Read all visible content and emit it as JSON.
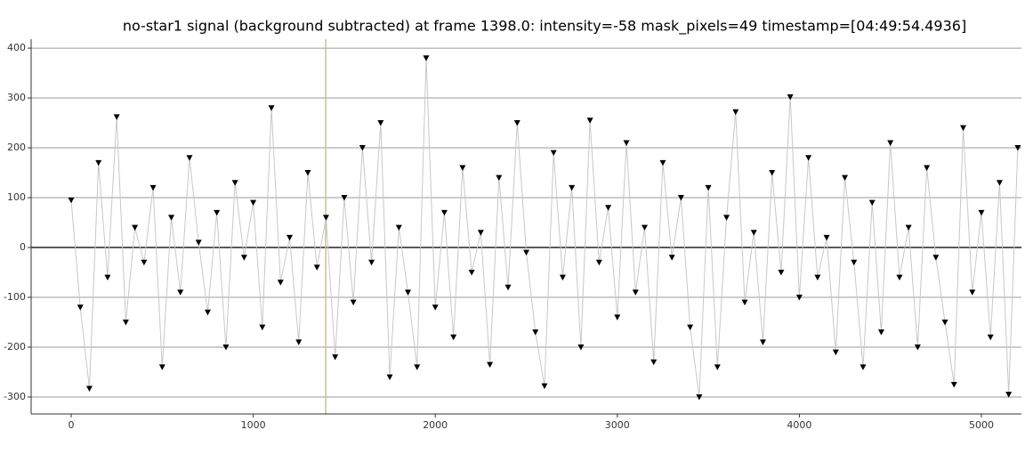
{
  "chart_data": {
    "type": "line",
    "title": "no-star1 signal (background subtracted) at frame 1398.0: intensity=-58 mask_pixels=49 timestamp=[04:49:54.4936]",
    "x": [
      0,
      50,
      100,
      150,
      200,
      250,
      300,
      350,
      400,
      450,
      500,
      550,
      600,
      650,
      700,
      750,
      800,
      850,
      900,
      950,
      1000,
      1050,
      1100,
      1150,
      1200,
      1250,
      1300,
      1350,
      1400,
      1450,
      1500,
      1550,
      1600,
      1650,
      1700,
      1750,
      1800,
      1850,
      1900,
      1950,
      2000,
      2050,
      2100,
      2150,
      2200,
      2250,
      2300,
      2350,
      2400,
      2450,
      2500,
      2550,
      2600,
      2650,
      2700,
      2750,
      2800,
      2850,
      2900,
      2950,
      3000,
      3050,
      3100,
      3150,
      3200,
      3250,
      3300,
      3350,
      3400,
      3450,
      3500,
      3550,
      3600,
      3650,
      3700,
      3750,
      3800,
      3850,
      3900,
      3950,
      4000,
      4050,
      4100,
      4150,
      4200,
      4250,
      4300,
      4350,
      4400,
      4450,
      4500,
      4550,
      4600,
      4650,
      4700,
      4750,
      4800,
      4850,
      4900,
      4950,
      5000,
      5050,
      5100,
      5150,
      5200
    ],
    "series": [
      {
        "color": "#000000",
        "line_color": "#c8c8c8",
        "values": [
          95,
          -120,
          -283,
          170,
          -60,
          262,
          -150,
          40,
          -30,
          120,
          -240,
          60,
          -90,
          180,
          10,
          -130,
          70,
          -200,
          130,
          -20,
          90,
          -160,
          280,
          -70,
          20,
          -190,
          150,
          -40,
          60,
          -220,
          100,
          -110,
          200,
          -30,
          250,
          -260,
          40,
          -90,
          -240,
          380,
          -120,
          70,
          -180,
          160,
          -50,
          30,
          -235,
          140,
          -80,
          250,
          -10,
          -170,
          -278,
          190,
          -60,
          120,
          -200,
          255,
          -30,
          80,
          -140,
          210,
          -90,
          40,
          -230,
          170,
          -20,
          100,
          -160,
          -300,
          120,
          -240,
          60,
          272,
          -110,
          30,
          -190,
          150,
          -50,
          302,
          -100,
          180,
          -60,
          20,
          -210,
          140,
          -30,
          -240,
          90,
          -170,
          210,
          -60,
          40,
          -200,
          160,
          -20,
          -150,
          -275,
          240,
          -90,
          70,
          -180,
          130,
          -295,
          200
        ]
      }
    ],
    "xlim": [
      -220,
      5220
    ],
    "ylim": [
      -334,
      418
    ],
    "xticks": [
      0,
      1000,
      2000,
      3000,
      4000,
      5000
    ],
    "yticks": [
      -300,
      -200,
      -100,
      0,
      100,
      200,
      300,
      400
    ],
    "grid": true,
    "cursor_frame": 1398,
    "cursor_color": "#c8c09a"
  }
}
